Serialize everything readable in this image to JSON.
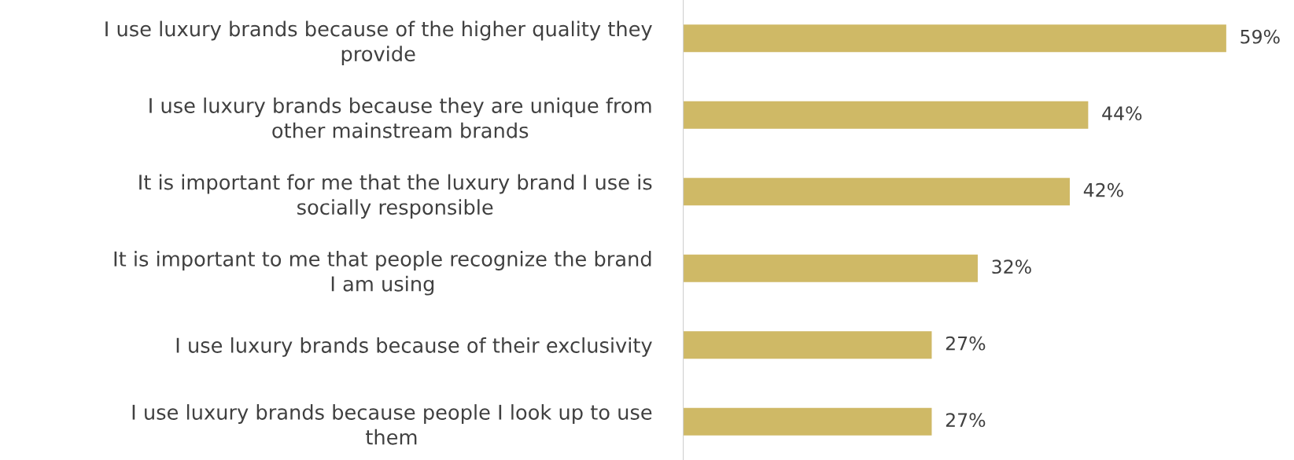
{
  "chart_data": {
    "type": "bar",
    "orientation": "horizontal",
    "categories": [
      "I use luxury brands because of the higher quality they\nprovide",
      "I use luxury brands because they are unique from\nother mainstream brands",
      "It is important for me that the luxury brand I use is\nsocially responsible",
      "It is important to me that people recognize the brand\nI am using",
      "I use luxury brands because of their exclusivity",
      "I use luxury brands because people I look up to use\nthem"
    ],
    "values": [
      59,
      44,
      42,
      32,
      27,
      27
    ],
    "value_labels": [
      "59%",
      "44%",
      "42%",
      "32%",
      "27%",
      "27%"
    ],
    "color": "#cfb966",
    "grid": false,
    "legend": false,
    "tick_labels": "y"
  }
}
